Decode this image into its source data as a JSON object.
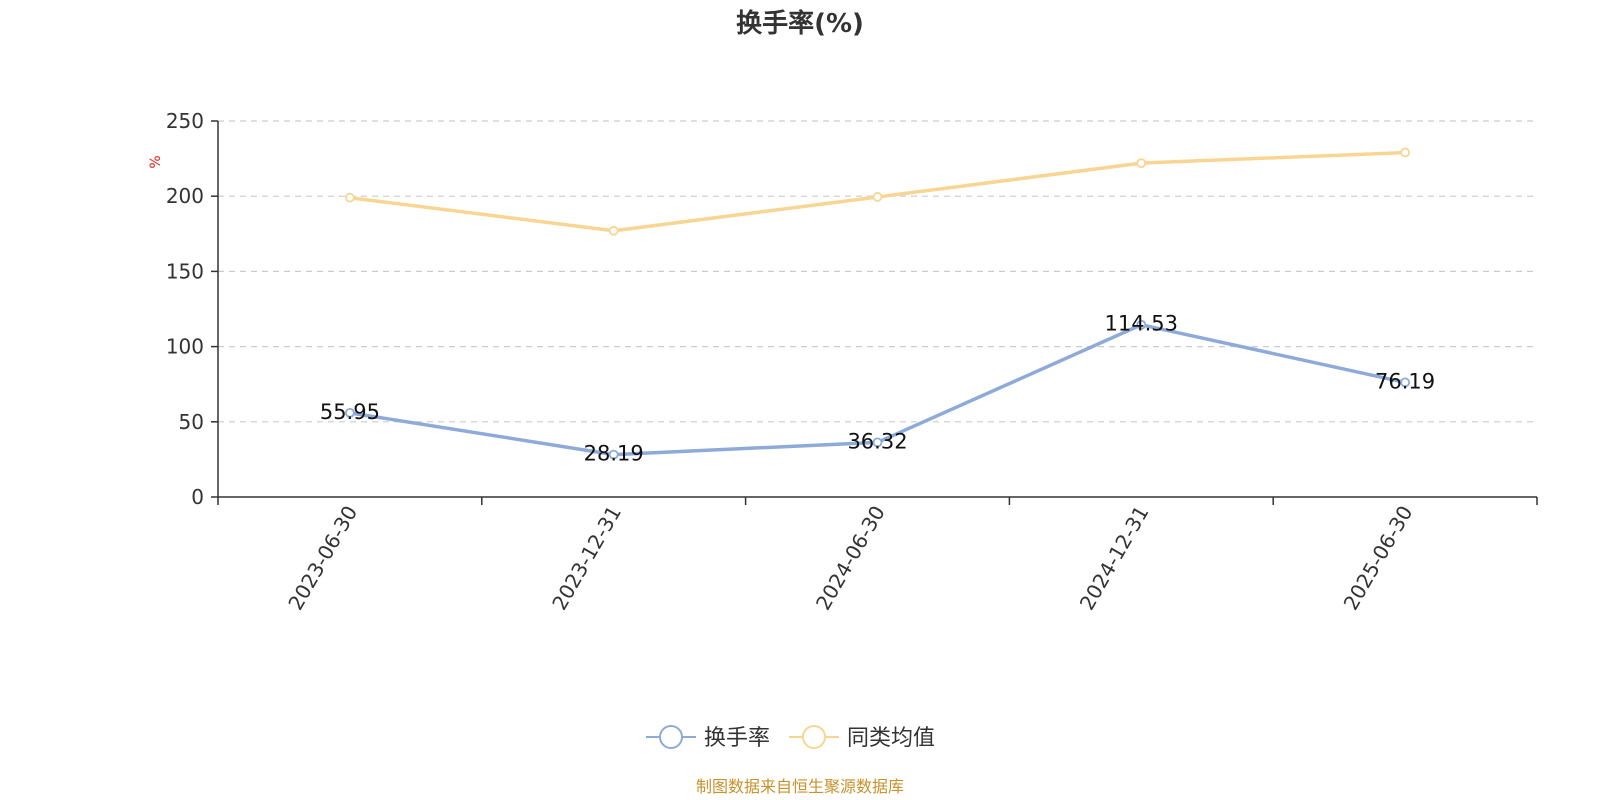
{
  "chart_data": {
    "type": "line",
    "title": "换手率(%)",
    "ylabel": "%",
    "xlabel": "",
    "categories": [
      "2023-06-30",
      "2023-12-31",
      "2024-06-30",
      "2024-12-31",
      "2025-06-30"
    ],
    "ylim": [
      0,
      250
    ],
    "yticks": [
      0,
      50,
      100,
      150,
      200,
      250
    ],
    "grid": true,
    "legend_position": "bottom-center",
    "series": [
      {
        "name": "换手率",
        "color": "#8eaad9",
        "values": [
          55.95,
          28.19,
          36.32,
          114.53,
          76.19
        ],
        "labels": [
          "55.95",
          "28.19",
          "36.32",
          "114.53",
          "76.19"
        ]
      },
      {
        "name": "同类均值",
        "color": "#f9d594",
        "values": [
          199,
          177,
          199.5,
          222,
          229
        ],
        "labels": []
      }
    ]
  },
  "source_text": "制图数据来自恒生聚源数据库",
  "colors": {
    "source": "#c8922c",
    "axis": "#333333",
    "grid": "#cccccc"
  }
}
